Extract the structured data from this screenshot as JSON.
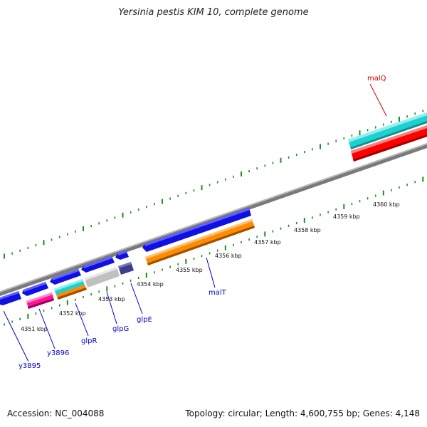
{
  "title": "Yersinia pestis KIM 10, complete genome",
  "footer": {
    "accession": "Accession: NC_004088",
    "summary": "Topology: circular; Length: 4,600,755 bp; Genes: 4,148"
  },
  "diagram": {
    "kbp_labels": [
      "4351 kbp",
      "4352 kbp",
      "4353 kbp",
      "4354 kbp",
      "4355 kbp",
      "4356 kbp",
      "4357 kbp",
      "4358 kbp",
      "4359 kbp",
      "4360 kbp"
    ],
    "gene_labels": [
      {
        "name": "y3895",
        "color": "#0000cc"
      },
      {
        "name": "y3896",
        "color": "#0000cc"
      },
      {
        "name": "glpR",
        "color": "#0000cc"
      },
      {
        "name": "glpG",
        "color": "#0000cc"
      },
      {
        "name": "glpE",
        "color": "#0000cc"
      },
      {
        "name": "malT",
        "color": "#0000cc"
      },
      {
        "name": "malQ",
        "color": "#cc0000"
      }
    ],
    "colors": {
      "backbone": "#888888",
      "tick": "#228b22",
      "gene_blue": "#1010e0",
      "gene_orange": "#ff8c00",
      "gene_cyan": "#20d0d0",
      "gene_red": "#ff0000",
      "gene_pink": "#ff1493",
      "gene_gray": "#c0c0c0",
      "gene_navy": "#3c3c8c"
    }
  }
}
